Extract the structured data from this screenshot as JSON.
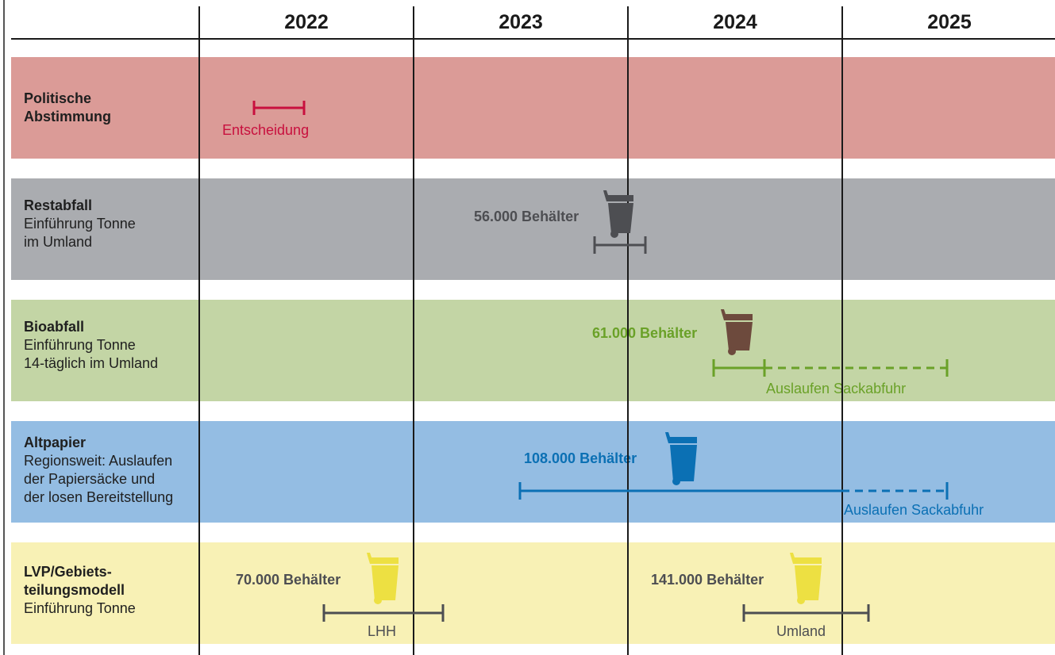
{
  "years": [
    "2022",
    "2023",
    "2024",
    "2025"
  ],
  "colors": {
    "politik_band": "#db9b97",
    "rest_band": "#aaacb0",
    "bio_band": "#c3d5a5",
    "papier_band": "#94bde3",
    "lvp_band": "#f8f1b5",
    "red": "#c8103e",
    "dark_gray": "#4d4e52",
    "green": "#6aa128",
    "brown": "#6d4a3d",
    "blue": "#0b70b4",
    "yellow": "#ede042"
  },
  "rows": {
    "politik": {
      "title": "Politische Abstimmung",
      "title_lines": [
        "Politische",
        "Abstimmung"
      ],
      "lines": [],
      "label": "Entscheidung"
    },
    "rest": {
      "title": "Restabfall",
      "lines": [
        "Einführung Tonne",
        "im Umland"
      ],
      "count": "56.000 Behälter",
      "bin_icon": "waste-bin-gray-icon"
    },
    "bio": {
      "title": "Bioabfall",
      "lines": [
        "Einführung Tonne",
        "14-täglich im Umland"
      ],
      "count": "61.000 Behälter",
      "phaseout": "Auslaufen Sackabfuhr",
      "bin_icon": "waste-bin-brown-icon"
    },
    "papier": {
      "title": "Altpapier",
      "lines": [
        "Regionsweit: Auslaufen",
        "der Papiersäcke und",
        "der losen Bereitstellung"
      ],
      "count": "108.000 Behälter",
      "phaseout": "Auslaufen Sackabfuhr",
      "bin_icon": "waste-bin-blue-icon"
    },
    "lvp": {
      "title": "LVP/Gebiets-teilungsmodell",
      "title_lines": [
        "LVP/Gebiets-",
        "teilungsmodell"
      ],
      "lines": [
        "Einführung Tonne"
      ],
      "count_lhh": "70.000 Behälter",
      "label_lhh": "LHH",
      "count_umland": "141.000 Behälter",
      "label_umland": "Umland",
      "bin_icon": "waste-bin-yellow-icon"
    }
  }
}
